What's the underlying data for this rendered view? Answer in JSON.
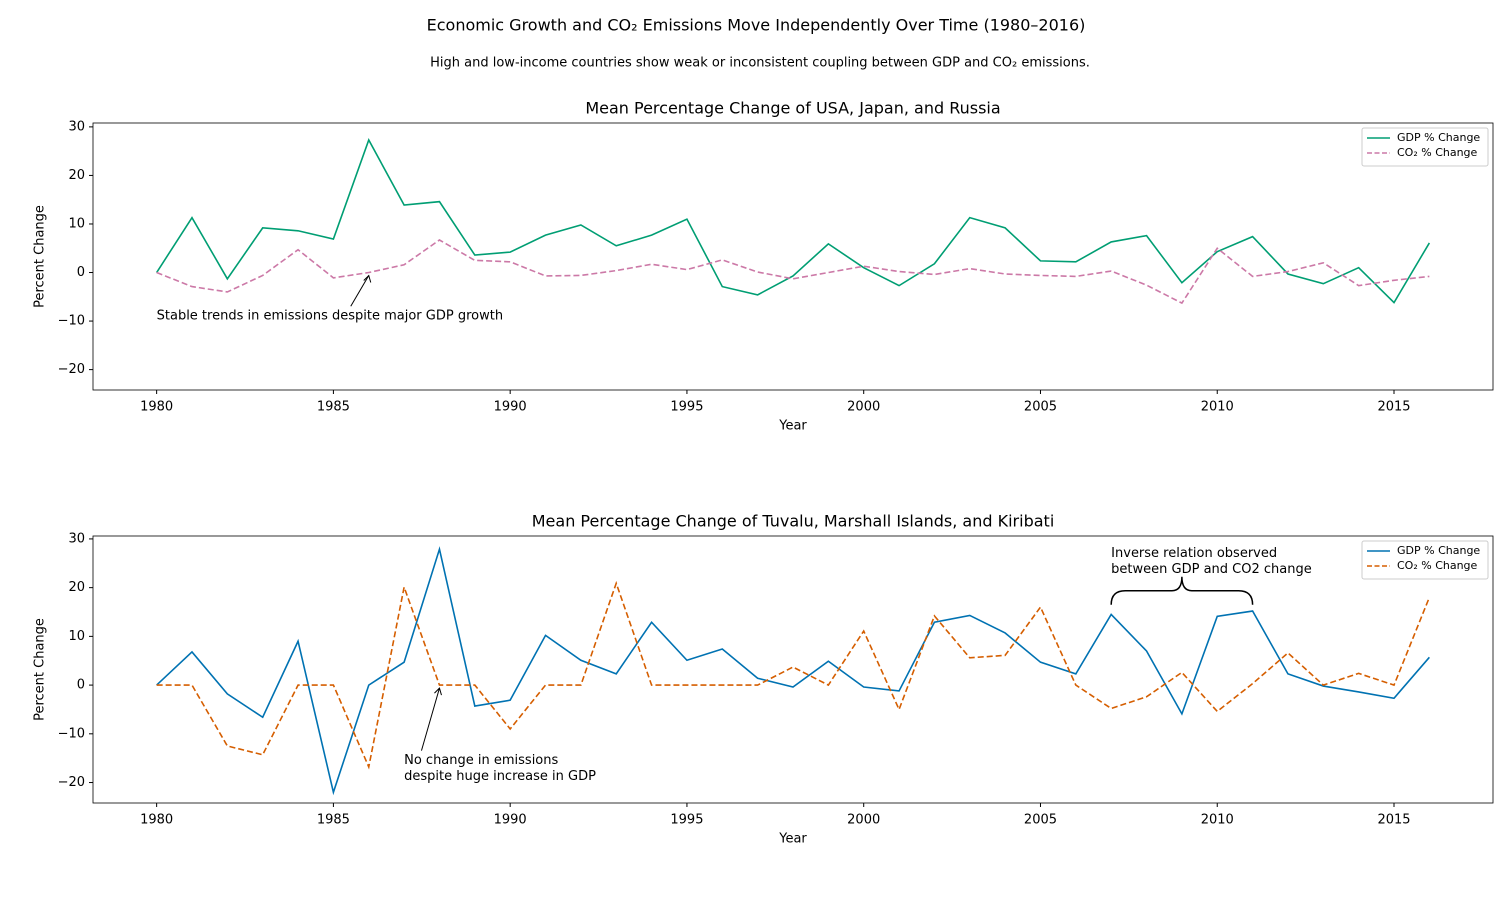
{
  "title": "Economic Growth and CO₂ Emissions Move Independently Over Time (1980–2016)",
  "subtitle": "High and low-income countries show weak or inconsistent coupling between GDP and CO₂ emissions.",
  "chart_data": [
    {
      "type": "line",
      "title": "Mean Percentage Change of USA, Japan, and Russia",
      "x_label": "Year",
      "y_label": "Percent Change",
      "x": [
        1980,
        1981,
        1982,
        1983,
        1984,
        1985,
        1986,
        1987,
        1988,
        1989,
        1990,
        1991,
        1992,
        1993,
        1994,
        1995,
        1996,
        1997,
        1998,
        1999,
        2000,
        2001,
        2002,
        2003,
        2004,
        2005,
        2006,
        2007,
        2008,
        2009,
        2010,
        2011,
        2012,
        2013,
        2014,
        2015,
        2016
      ],
      "series": [
        {
          "name": "GDP % Change",
          "color": "#009e73",
          "linestyle": "solid",
          "values": [
            0,
            11.3,
            -1.3,
            9.2,
            8.6,
            6.9,
            27.3,
            13.9,
            14.6,
            3.6,
            4.2,
            7.7,
            9.8,
            5.5,
            7.7,
            11.0,
            -2.9,
            -4.6,
            -0.7,
            5.9,
            1.0,
            -2.7,
            1.8,
            11.3,
            9.2,
            2.4,
            2.2,
            6.3,
            7.6,
            -2.1,
            4.3,
            7.4,
            -0.3,
            -2.3,
            1.0,
            -6.2,
            6.1
          ]
        },
        {
          "name": "CO₂ % Change",
          "color": "#cc79a7",
          "linestyle": "dashed",
          "values": [
            0,
            -2.9,
            -4.0,
            -0.6,
            4.7,
            -1.1,
            0,
            1.6,
            6.7,
            2.5,
            2.2,
            -0.7,
            -0.6,
            0.4,
            1.7,
            0.6,
            2.6,
            0.1,
            -1.3,
            0,
            1.3,
            0.2,
            -0.4,
            0.8,
            -0.3,
            -0.6,
            -0.8,
            0.3,
            -2.6,
            -6.3,
            5.0,
            -0.8,
            0.2,
            2.0,
            -2.7,
            -1.6,
            -0.8
          ]
        }
      ],
      "xlim": [
        1978.2,
        2017.8
      ],
      "ylim": [
        -24.2,
        30.8
      ],
      "xticks": [
        1980,
        1985,
        1990,
        1995,
        2000,
        2005,
        2010,
        2015
      ],
      "yticks": [
        {
          "value": -20,
          "label": "−20"
        },
        {
          "value": -10,
          "label": "−10"
        },
        0,
        10,
        20,
        30
      ],
      "legend": "upper right",
      "annotations": [
        {
          "kind": "arrow",
          "text": [
            "Stable trends in emissions despite major GDP growth"
          ],
          "x": 1986,
          "y": 0,
          "text_x": 1980,
          "text_y": -9
        }
      ]
    },
    {
      "type": "line",
      "title": "Mean Percentage Change of Tuvalu, Marshall Islands, and Kiribati",
      "x_label": "Year",
      "y_label": "Percent Change",
      "x": [
        1980,
        1981,
        1982,
        1983,
        1984,
        1985,
        1986,
        1987,
        1988,
        1989,
        1990,
        1991,
        1992,
        1993,
        1994,
        1995,
        1996,
        1997,
        1998,
        1999,
        2000,
        2001,
        2002,
        2003,
        2004,
        2005,
        2006,
        2007,
        2008,
        2009,
        2010,
        2011,
        2012,
        2013,
        2014,
        2015,
        2016
      ],
      "series": [
        {
          "name": "GDP % Change",
          "color": "#0072b2",
          "linestyle": "solid",
          "values": [
            0,
            6.8,
            -1.8,
            -6.6,
            9.0,
            -22,
            0,
            4.7,
            27.9,
            -4.3,
            -3.1,
            10.2,
            5.1,
            2.3,
            12.9,
            5.1,
            7.4,
            1.4,
            -0.4,
            4.9,
            -0.4,
            -1.2,
            12.9,
            14.3,
            10.7,
            4.7,
            2.3,
            14.5,
            7.0,
            -5.9,
            14.1,
            15.2,
            2.3,
            -0.2,
            -1.4,
            -2.7,
            5.7
          ]
        },
        {
          "name": "CO₂ % Change",
          "color": "#d55e00",
          "linestyle": "dashed",
          "values": [
            0,
            0,
            -12.5,
            -14.3,
            0,
            0,
            -16.8,
            20.1,
            0,
            0,
            -9.0,
            0,
            0,
            20.9,
            0,
            0,
            0,
            0,
            3.7,
            0,
            11.1,
            -5.0,
            14.2,
            5.6,
            6.1,
            16.0,
            0,
            -4.8,
            -2.4,
            2.6,
            -5.4,
            0.3,
            6.6,
            0,
            2.4,
            0,
            18.0
          ]
        }
      ],
      "xlim": [
        1978.2,
        2017.8
      ],
      "ylim": [
        -24.2,
        30.6
      ],
      "xticks": [
        1980,
        1985,
        1990,
        1995,
        2000,
        2005,
        2010,
        2015
      ],
      "yticks": [
        {
          "value": -20,
          "label": "−20"
        },
        {
          "value": -10,
          "label": "−10"
        },
        0,
        10,
        20,
        30
      ],
      "legend": "upper right",
      "annotations": [
        {
          "kind": "arrow",
          "text": [
            "No change in emissions",
            "despite huge increase in GDP"
          ],
          "x": 1988,
          "y": 0,
          "text_x": 1987,
          "text_y": -15.5
        },
        {
          "kind": "brace",
          "text": [
            "Inverse relation observed",
            "between GDP and CO2 change"
          ],
          "x_range": [
            2007,
            2011
          ],
          "y": 16.5,
          "text_x": 2007,
          "text_y": 27
        }
      ]
    }
  ]
}
